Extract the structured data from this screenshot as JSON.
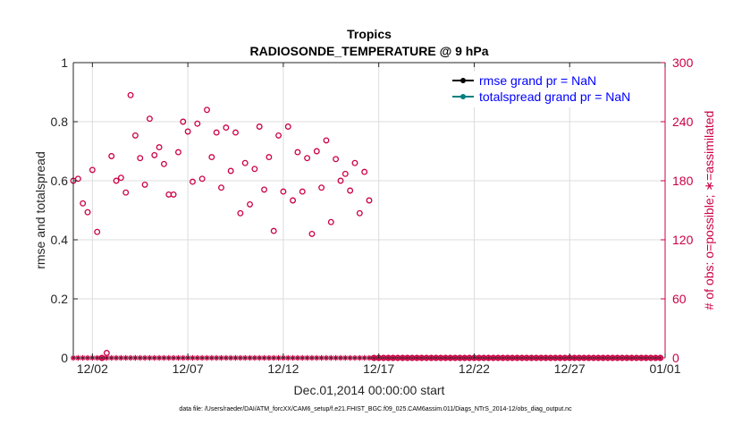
{
  "chart_data": {
    "type": "scatter",
    "title": "Tropics",
    "subtitle": "RADIOSONDE_TEMPERATURE @ 9 hPa",
    "xlabel": "Dec.01,2014 00:00:00 start",
    "ylabel_left": "rmse and totalspread",
    "ylabel_right": "# of obs: o=possible; ∗=assimilated",
    "footnote": "data file: /Users/raeder/DAI/ATM_forcXX/CAM6_setup/f.e21.FHIST_BGC.f09_025.CAM6assim.011/Diags_NTrS_2014-12/obs_diag_output.nc",
    "xlim": [
      1,
      32
    ],
    "ylim_left": [
      0,
      1
    ],
    "ylim_right": [
      0,
      300
    ],
    "x_ticks": [
      {
        "value": 2,
        "label": "12/02"
      },
      {
        "value": 7,
        "label": "12/07"
      },
      {
        "value": 12,
        "label": "12/12"
      },
      {
        "value": 17,
        "label": "12/17"
      },
      {
        "value": 22,
        "label": "12/22"
      },
      {
        "value": 27,
        "label": "12/27"
      },
      {
        "value": 32,
        "label": "01/01"
      }
    ],
    "y_left_ticks": [
      {
        "value": 0,
        "label": "0"
      },
      {
        "value": 0.2,
        "label": "0.2"
      },
      {
        "value": 0.4,
        "label": "0.4"
      },
      {
        "value": 0.6,
        "label": "0.6"
      },
      {
        "value": 0.8,
        "label": "0.8"
      },
      {
        "value": 1,
        "label": "1"
      }
    ],
    "y_right_ticks": [
      {
        "value": 0,
        "label": "0"
      },
      {
        "value": 60,
        "label": "60"
      },
      {
        "value": 120,
        "label": "120"
      },
      {
        "value": 180,
        "label": "180"
      },
      {
        "value": 240,
        "label": "240"
      },
      {
        "value": 300,
        "label": "300"
      }
    ],
    "grid": true,
    "legend_position": "top-right",
    "legend": [
      {
        "name": "rmse grand pr = NaN",
        "color": "#000000",
        "text_color": "#0000ff"
      },
      {
        "name": "totalspread grand pr = NaN",
        "color": "#008080",
        "text_color": "#0000ff"
      }
    ],
    "series": [
      {
        "name": "obs possible",
        "marker": "circle",
        "axis": "right",
        "color": "#cc0044",
        "x": [
          1,
          1.25,
          1.5,
          1.75,
          2,
          2.25,
          2.5,
          2.75,
          3,
          3.25,
          3.5,
          3.75,
          4,
          4.25,
          4.5,
          4.75,
          5,
          5.25,
          5.5,
          5.75,
          6,
          6.25,
          6.5,
          6.75,
          7,
          7.25,
          7.5,
          7.75,
          8,
          8.25,
          8.5,
          8.75,
          9,
          9.25,
          9.5,
          9.75,
          10,
          10.25,
          10.5,
          10.75,
          11,
          11.25,
          11.5,
          11.75,
          12,
          12.25,
          12.5,
          12.75,
          13,
          13.25,
          13.5,
          13.75,
          14,
          14.25,
          14.5,
          14.75,
          15,
          15.25,
          15.5,
          15.75,
          16,
          16.25,
          16.5,
          16.75,
          17,
          17.25,
          17.5,
          17.75,
          18,
          18.25,
          18.5,
          18.75,
          19,
          19.25,
          19.5,
          19.75,
          20,
          20.25,
          20.5,
          20.75,
          21,
          21.25,
          21.5,
          21.75,
          22,
          22.25,
          22.5,
          22.75,
          23,
          23.25,
          23.5,
          23.75,
          24,
          24.25,
          24.5,
          24.75,
          25,
          25.25,
          25.5,
          25.75,
          26,
          26.25,
          26.5,
          26.75,
          27,
          27.25,
          27.5,
          27.75,
          28,
          28.25,
          28.5,
          28.75,
          29,
          29.25,
          29.5,
          29.75,
          30,
          30.25,
          30.5,
          30.75,
          31,
          31.25,
          31.5,
          31.75
        ],
        "values": [
          180,
          182,
          157,
          148,
          191,
          128,
          0,
          5,
          205,
          180,
          183,
          168,
          267,
          226,
          203,
          176,
          243,
          206,
          214,
          197,
          166,
          166,
          209,
          240,
          230,
          179,
          238,
          182,
          252,
          204,
          229,
          173,
          234,
          190,
          229,
          147,
          198,
          156,
          192,
          235,
          171,
          204,
          129,
          226,
          169,
          235,
          160,
          209,
          169,
          203,
          126,
          210,
          173,
          221,
          138,
          202,
          180,
          187,
          170,
          198,
          147,
          189,
          160,
          0,
          0,
          0,
          0,
          0,
          0,
          0,
          0,
          0,
          0,
          0,
          0,
          0,
          0,
          0,
          0,
          0,
          0,
          0,
          0,
          0,
          0,
          0,
          0,
          0,
          0,
          0,
          0,
          0,
          0,
          0,
          0,
          0,
          0,
          0,
          0,
          0,
          0,
          0,
          0,
          0,
          0,
          0,
          0,
          0,
          0,
          0,
          0,
          0,
          0,
          0,
          0,
          0,
          0,
          0,
          0,
          0,
          0,
          0,
          0,
          0
        ]
      },
      {
        "name": "obs assimilated",
        "marker": "asterisk",
        "axis": "right",
        "color": "#cc0044",
        "x": [
          1,
          1.25,
          1.5,
          1.75,
          2,
          2.25,
          2.5,
          2.75,
          3,
          3.25,
          3.5,
          3.75,
          4,
          4.25,
          4.5,
          4.75,
          5,
          5.25,
          5.5,
          5.75,
          6,
          6.25,
          6.5,
          6.75,
          7,
          7.25,
          7.5,
          7.75,
          8,
          8.25,
          8.5,
          8.75,
          9,
          9.25,
          9.5,
          9.75,
          10,
          10.25,
          10.5,
          10.75,
          11,
          11.25,
          11.5,
          11.75,
          12,
          12.25,
          12.5,
          12.75,
          13,
          13.25,
          13.5,
          13.75,
          14,
          14.25,
          14.5,
          14.75,
          15,
          15.25,
          15.5,
          15.75,
          16,
          16.25,
          16.5,
          16.75,
          17,
          17.25,
          17.5,
          17.75,
          18,
          18.25,
          18.5,
          18.75,
          19,
          19.25,
          19.5,
          19.75,
          20,
          20.25,
          20.5,
          20.75,
          21,
          21.25,
          21.5,
          21.75,
          22,
          22.25,
          22.5,
          22.75,
          23,
          23.25,
          23.5,
          23.75,
          24,
          24.25,
          24.5,
          24.75,
          25,
          25.25,
          25.5,
          25.75,
          26,
          26.25,
          26.5,
          26.75,
          27,
          27.25,
          27.5,
          27.75,
          28,
          28.25,
          28.5,
          28.75,
          29,
          29.25,
          29.5,
          29.75,
          30,
          30.25,
          30.5,
          30.75,
          31,
          31.25,
          31.5,
          31.75
        ],
        "values": [
          0,
          0,
          0,
          0,
          0,
          0,
          0,
          0,
          0,
          0,
          0,
          0,
          0,
          0,
          0,
          0,
          0,
          0,
          0,
          0,
          0,
          0,
          0,
          0,
          0,
          0,
          0,
          0,
          0,
          0,
          0,
          0,
          0,
          0,
          0,
          0,
          0,
          0,
          0,
          0,
          0,
          0,
          0,
          0,
          0,
          0,
          0,
          0,
          0,
          0,
          0,
          0,
          0,
          0,
          0,
          0,
          0,
          0,
          0,
          0,
          0,
          0,
          0,
          0,
          0,
          0,
          0,
          0,
          0,
          0,
          0,
          0,
          0,
          0,
          0,
          0,
          0,
          0,
          0,
          0,
          0,
          0,
          0,
          0,
          0,
          0,
          0,
          0,
          0,
          0,
          0,
          0,
          0,
          0,
          0,
          0,
          0,
          0,
          0,
          0,
          0,
          0,
          0,
          0,
          0,
          0,
          0,
          0,
          0,
          0,
          0,
          0,
          0,
          0,
          0,
          0,
          0,
          0,
          0,
          0,
          0,
          0,
          0,
          0
        ]
      }
    ],
    "colors": {
      "obs": "#cc0044",
      "axis": "#262626",
      "grid": "#dcdcdc",
      "legend_text": "#0000ff",
      "rmse_line": "#000000",
      "spread_line": "#008080"
    }
  }
}
